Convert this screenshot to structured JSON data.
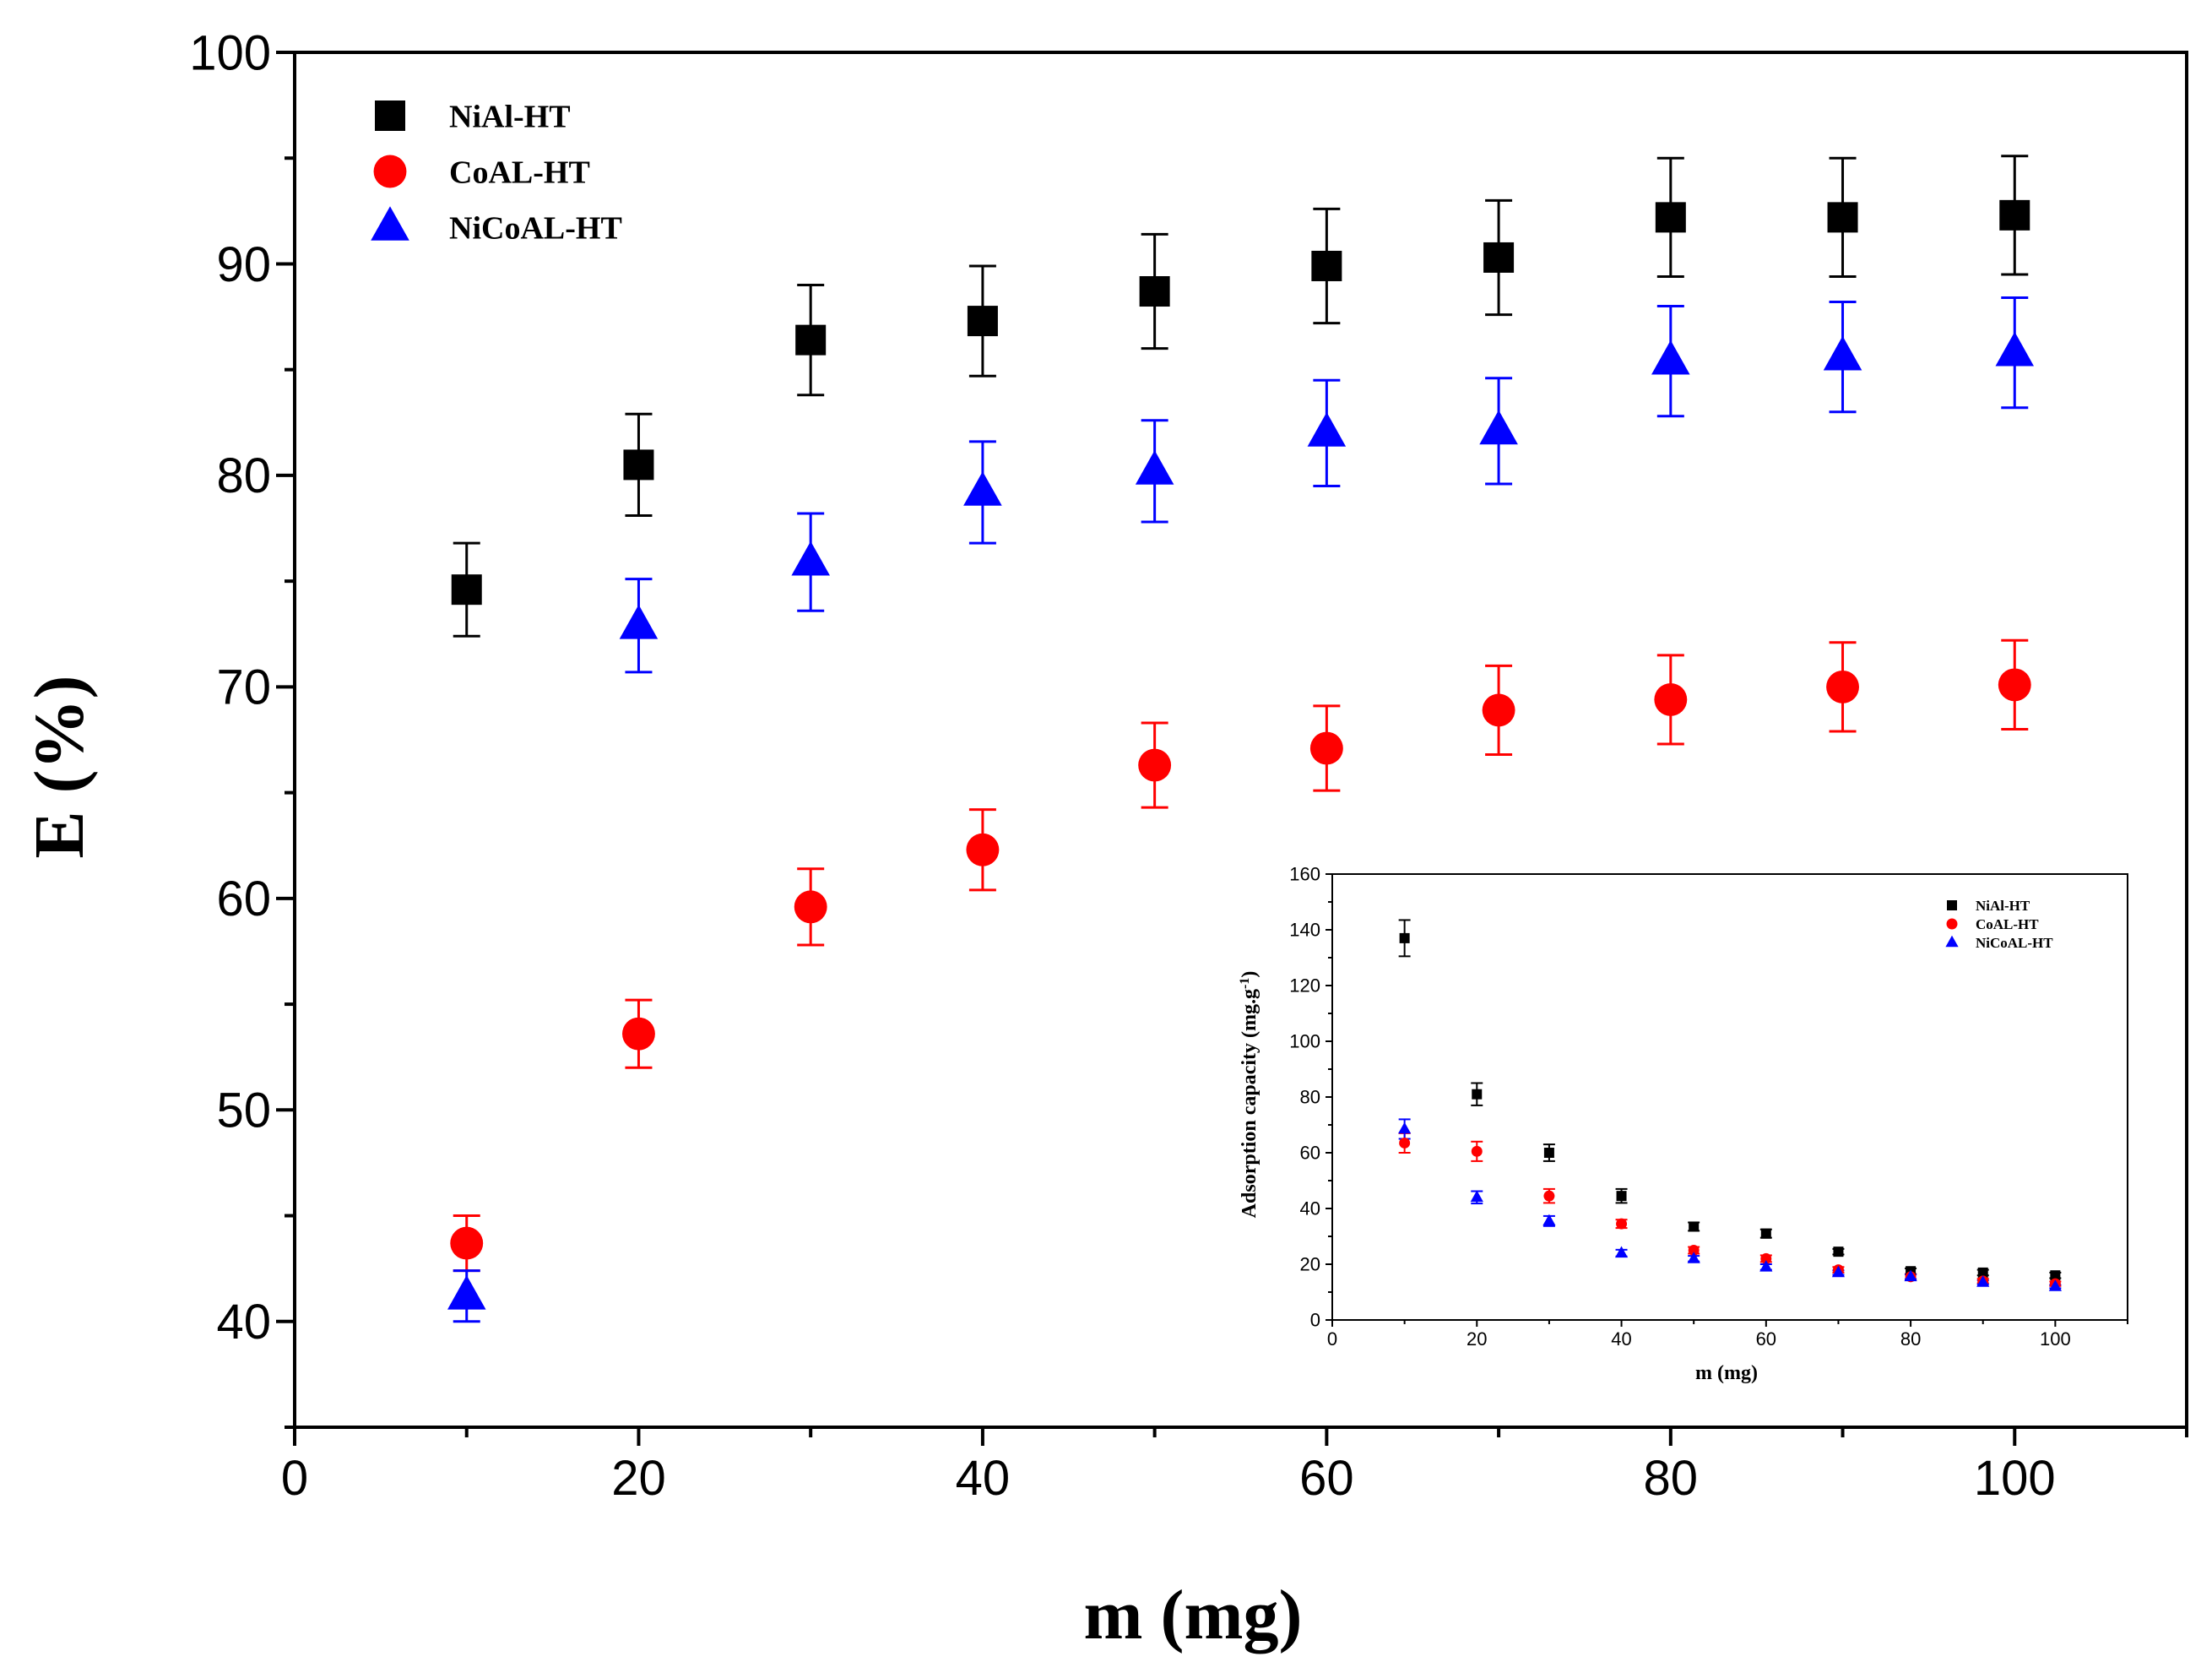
{
  "chart_data": [
    {
      "type": "scatter",
      "title": "",
      "xlabel": "m (mg)",
      "ylabel": "E (%)",
      "xlim": [
        0,
        110
      ],
      "ylim": [
        35,
        100
      ],
      "xticks": [
        0,
        20,
        40,
        60,
        80,
        100
      ],
      "yticks": [
        40,
        50,
        60,
        70,
        80,
        90,
        100
      ],
      "grid": false,
      "legend_position": "top-left",
      "series": [
        {
          "name": "NiAl-HT",
          "marker": "square",
          "color": "#000000",
          "x": [
            10,
            20,
            30,
            40,
            50,
            60,
            70,
            80,
            90,
            100
          ],
          "y": [
            74.6,
            80.5,
            86.4,
            87.3,
            88.7,
            89.9,
            90.3,
            92.2,
            92.2,
            92.3
          ],
          "yerr": [
            2.2,
            2.4,
            2.6,
            2.6,
            2.7,
            2.7,
            2.7,
            2.8,
            2.8,
            2.8
          ]
        },
        {
          "name": "CoAL-HT",
          "marker": "circle",
          "color": "#ff0000",
          "x": [
            10,
            20,
            30,
            40,
            50,
            60,
            70,
            80,
            90,
            100
          ],
          "y": [
            43.7,
            53.6,
            59.6,
            62.3,
            66.3,
            67.1,
            68.9,
            69.4,
            70.0,
            70.1
          ],
          "yerr": [
            1.3,
            1.6,
            1.8,
            1.9,
            2.0,
            2.0,
            2.1,
            2.1,
            2.1,
            2.1
          ]
        },
        {
          "name": "NiCoAL-HT",
          "marker": "triangle",
          "color": "#0000ff",
          "x": [
            10,
            20,
            30,
            40,
            50,
            60,
            70,
            80,
            90,
            100
          ],
          "y": [
            41.2,
            72.9,
            75.9,
            79.2,
            80.2,
            82.0,
            82.1,
            85.4,
            85.6,
            85.8
          ],
          "yerr": [
            1.2,
            2.2,
            2.3,
            2.4,
            2.4,
            2.5,
            2.5,
            2.6,
            2.6,
            2.6
          ]
        }
      ]
    },
    {
      "type": "scatter",
      "title": "",
      "inset": true,
      "xlabel": "m (mg)",
      "ylabel": "Adsorption capacity (mg.g",
      "ylabel_sup": "-1",
      "ylabel_close": ")",
      "xlim": [
        0,
        110
      ],
      "ylim": [
        0,
        160
      ],
      "xticks": [
        0,
        20,
        40,
        60,
        80,
        100
      ],
      "yticks": [
        0,
        20,
        40,
        60,
        80,
        100,
        120,
        140,
        160
      ],
      "grid": false,
      "legend_position": "top-right",
      "series": [
        {
          "name": "NiAl-HT",
          "marker": "square",
          "color": "#000000",
          "x": [
            10,
            20,
            30,
            40,
            50,
            60,
            70,
            80,
            90,
            100
          ],
          "y": [
            137,
            81,
            60,
            44.5,
            33.5,
            31,
            24.5,
            17.5,
            17,
            16
          ],
          "yerr": [
            6.5,
            4,
            3,
            2.5,
            1.5,
            1.5,
            1,
            1,
            1,
            1
          ]
        },
        {
          "name": "CoAL-HT",
          "marker": "circle",
          "color": "#ff0000",
          "x": [
            10,
            20,
            30,
            40,
            50,
            60,
            70,
            80,
            90,
            100
          ],
          "y": [
            63.5,
            60.5,
            44.5,
            34.5,
            25,
            22,
            18,
            15.5,
            14,
            13
          ],
          "yerr": [
            3.5,
            3.5,
            2.5,
            1.5,
            1.2,
            1.2,
            1,
            1,
            0.8,
            0.8
          ]
        },
        {
          "name": "NiCoAL-HT",
          "marker": "triangle",
          "color": "#0000ff",
          "x": [
            10,
            20,
            30,
            40,
            50,
            60,
            70,
            80,
            90,
            100
          ],
          "y": [
            68.5,
            44,
            35.5,
            24,
            22,
            19,
            17,
            15.5,
            13.5,
            12
          ],
          "yerr": [
            3.5,
            2.2,
            1.8,
            1.2,
            1,
            1,
            0.8,
            0.8,
            0.7,
            0.6
          ]
        }
      ]
    }
  ]
}
